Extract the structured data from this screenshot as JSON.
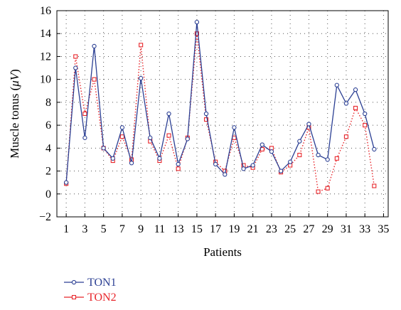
{
  "chart_data": {
    "type": "line",
    "xlabel": "Patients",
    "ylabel": "Muscle tonus (μV)",
    "ylabel_parts": {
      "prefix": "Muscle tonus (",
      "unit": "μV",
      "suffix": ")"
    },
    "xlim": [
      0,
      35.5
    ],
    "ylim": [
      -2,
      16
    ],
    "x_ticks": [
      1,
      3,
      5,
      7,
      9,
      11,
      13,
      15,
      17,
      19,
      21,
      23,
      25,
      27,
      29,
      31,
      33,
      35
    ],
    "y_ticks": [
      -2,
      0,
      2,
      4,
      6,
      8,
      10,
      12,
      14,
      16
    ],
    "y_tick_labels": [
      "−2",
      "0",
      "2",
      "4",
      "6",
      "8",
      "10",
      "12",
      "14",
      "16"
    ],
    "grid": true,
    "grid_style": "dotted",
    "legend_position": "below-left",
    "x": [
      1,
      2,
      3,
      4,
      5,
      6,
      7,
      8,
      9,
      10,
      11,
      12,
      13,
      14,
      15,
      16,
      17,
      18,
      19,
      20,
      21,
      22,
      23,
      24,
      25,
      26,
      27,
      28,
      29,
      30,
      31,
      32,
      33,
      34
    ],
    "series": [
      {
        "name": "TON1",
        "color": "#2b3f93",
        "line_style": "solid",
        "marker": "circle",
        "values": [
          1.0,
          11.0,
          4.9,
          12.9,
          4.0,
          3.1,
          5.8,
          2.7,
          10.1,
          4.9,
          3.1,
          7.0,
          2.6,
          4.8,
          15.0,
          7.0,
          2.6,
          1.7,
          5.8,
          2.2,
          2.5,
          4.3,
          3.7,
          2.0,
          2.8,
          4.6,
          6.1,
          3.4,
          3.0,
          9.5,
          7.9,
          9.1,
          7.0,
          3.9
        ]
      },
      {
        "name": "TON2",
        "color": "#e8262b",
        "line_style": "dotted",
        "marker": "square",
        "values": [
          0.9,
          12.0,
          7.0,
          10.0,
          4.0,
          2.9,
          5.0,
          3.0,
          13.0,
          4.6,
          2.9,
          5.1,
          2.2,
          4.9,
          14.0,
          6.5,
          2.8,
          2.0,
          4.9,
          2.5,
          2.3,
          3.9,
          4.0,
          1.9,
          2.5,
          3.4,
          5.8,
          0.2,
          0.5,
          3.1,
          5.0,
          7.5,
          6.0,
          0.7
        ]
      }
    ]
  }
}
